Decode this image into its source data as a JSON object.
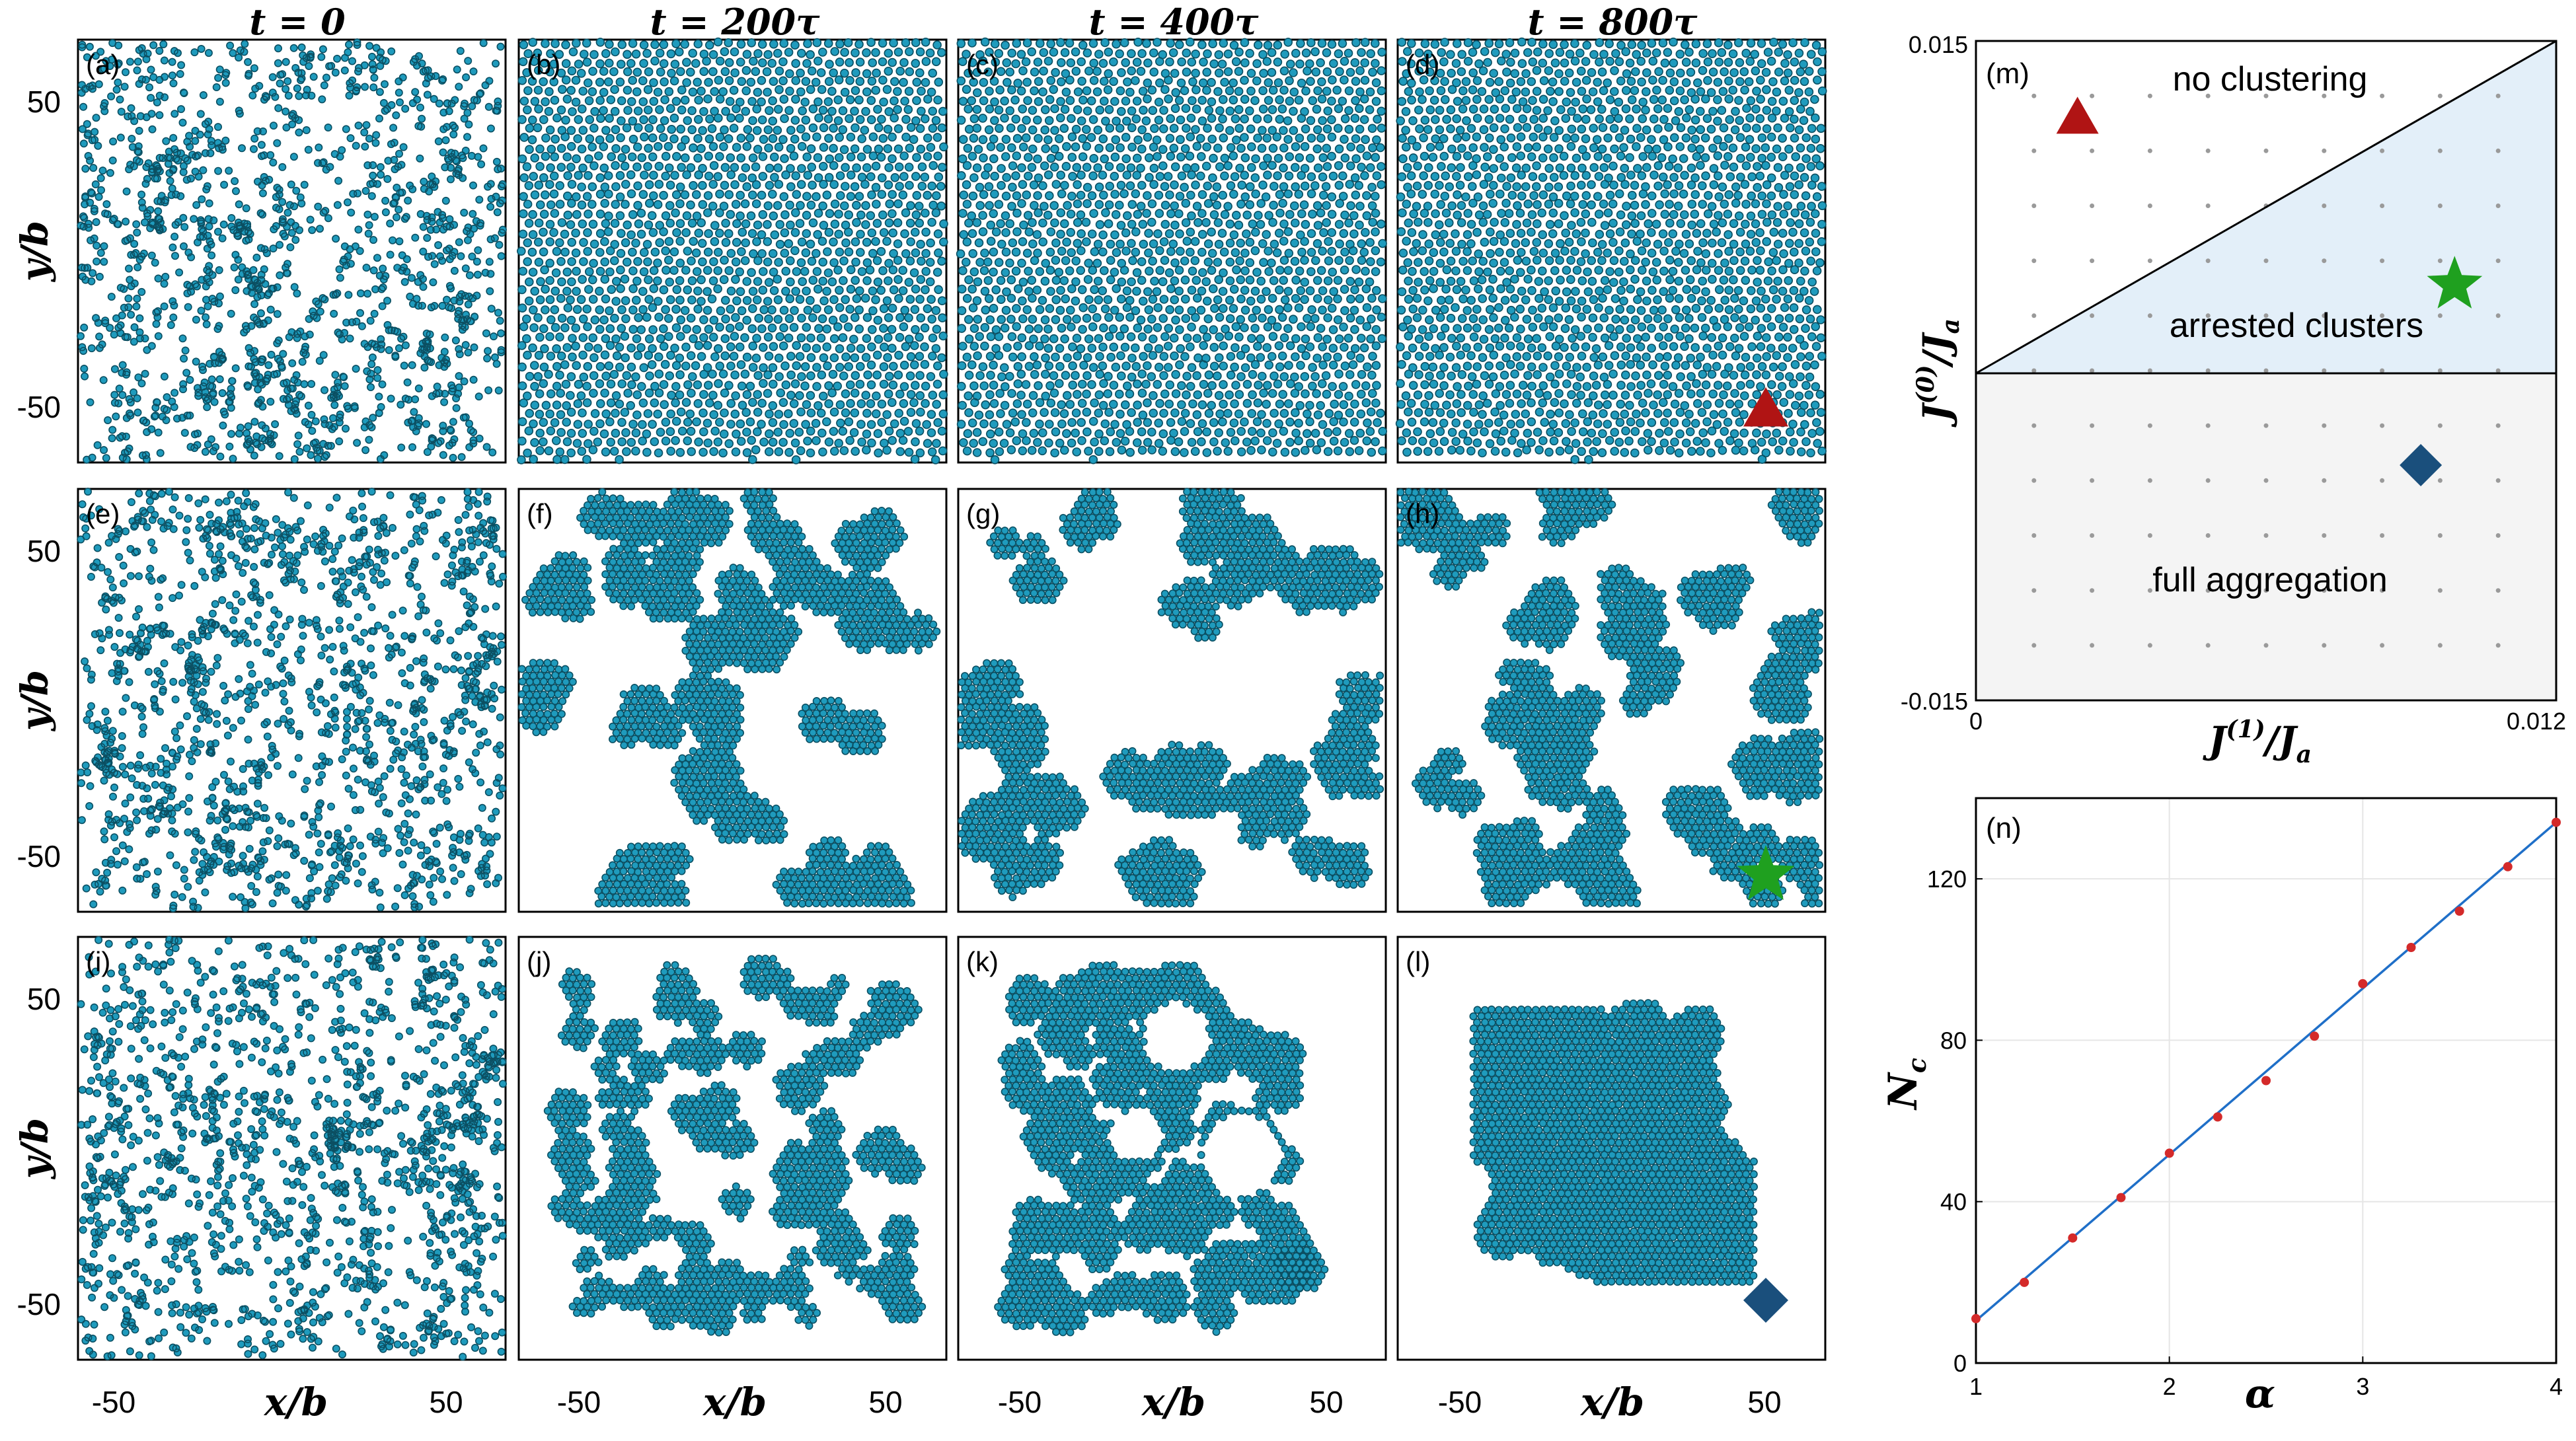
{
  "colors": {
    "particle_fill": "#1f9bbd",
    "particle_edge": "#0b4f62",
    "triangle": "#b01414",
    "star": "#1fa01f",
    "diamond": "#1a4f7c",
    "region_arrested": "#e3eff9",
    "region_full": "#f4f4f4",
    "line_fit": "#1f6fc8",
    "points": "#d42a2a"
  },
  "column_titles": [
    "t = 0",
    "t = 200τ",
    "t = 400τ",
    "t = 800τ"
  ],
  "axis_labels": {
    "x": "x/b",
    "y": "y/b"
  },
  "ticks": {
    "x": [
      "-50",
      "50"
    ],
    "y": [
      "50",
      "-50"
    ]
  },
  "panels": [
    {
      "label": "(a)",
      "row": 0,
      "col": 0,
      "state": "random",
      "seed": 11
    },
    {
      "label": "(b)",
      "row": 0,
      "col": 1,
      "state": "lattice",
      "seed": 12
    },
    {
      "label": "(c)",
      "row": 0,
      "col": 2,
      "state": "lattice",
      "seed": 13
    },
    {
      "label": "(d)",
      "row": 0,
      "col": 3,
      "state": "lattice",
      "seed": 14,
      "marker": "triangle"
    },
    {
      "label": "(e)",
      "row": 1,
      "col": 0,
      "state": "random",
      "seed": 21
    },
    {
      "label": "(f)",
      "row": 1,
      "col": 1,
      "state": "clusters",
      "seed": 22
    },
    {
      "label": "(g)",
      "row": 1,
      "col": 2,
      "state": "clusters",
      "seed": 23
    },
    {
      "label": "(h)",
      "row": 1,
      "col": 3,
      "state": "clusters",
      "seed": 24,
      "marker": "star"
    },
    {
      "label": "(i)",
      "row": 2,
      "col": 0,
      "state": "random",
      "seed": 31
    },
    {
      "label": "(j)",
      "row": 2,
      "col": 1,
      "state": "network",
      "seed": 32
    },
    {
      "label": "(k)",
      "row": 2,
      "col": 2,
      "state": "frame",
      "seed": 33
    },
    {
      "label": "(l)",
      "row": 2,
      "col": 3,
      "state": "aggregate",
      "seed": 34,
      "marker": "diamond"
    }
  ],
  "phase_diagram": {
    "label": "(m)",
    "xlabel": "J(1)/Ja",
    "ylabel": "J(0)/Ja",
    "x_range": [
      0,
      0.012
    ],
    "y_range": [
      -0.015,
      0.015
    ],
    "x_ticks": [
      "0",
      "0.012"
    ],
    "y_ticks": [
      "0.015",
      "-0.015"
    ],
    "regions": [
      "no clustering",
      "arrested clusters",
      "full aggregation"
    ],
    "markers": [
      {
        "shape": "triangle",
        "x": 0.0021,
        "y": 0.0115
      },
      {
        "shape": "star",
        "x": 0.0099,
        "y": 0.0039
      },
      {
        "shape": "diamond",
        "x": 0.0092,
        "y": -0.0043
      }
    ]
  },
  "chart_data": {
    "type": "scatter",
    "label": "(n)",
    "xlabel": "α",
    "ylabel": "Nc",
    "xlim": [
      1,
      4
    ],
    "ylim": [
      0,
      140
    ],
    "x_ticks": [
      1,
      2,
      3,
      4
    ],
    "y_ticks": [
      0,
      40,
      80,
      120
    ],
    "grid": true,
    "x": [
      1,
      1.25,
      1.5,
      1.75,
      2,
      2.25,
      2.5,
      2.75,
      3,
      3.25,
      3.5,
      3.75,
      4
    ],
    "y": [
      11,
      20,
      31,
      41,
      52,
      61,
      70,
      81,
      94,
      103,
      112,
      123,
      134
    ],
    "fit": {
      "x": [
        1,
        4
      ],
      "y": [
        10.5,
        134
      ]
    }
  }
}
